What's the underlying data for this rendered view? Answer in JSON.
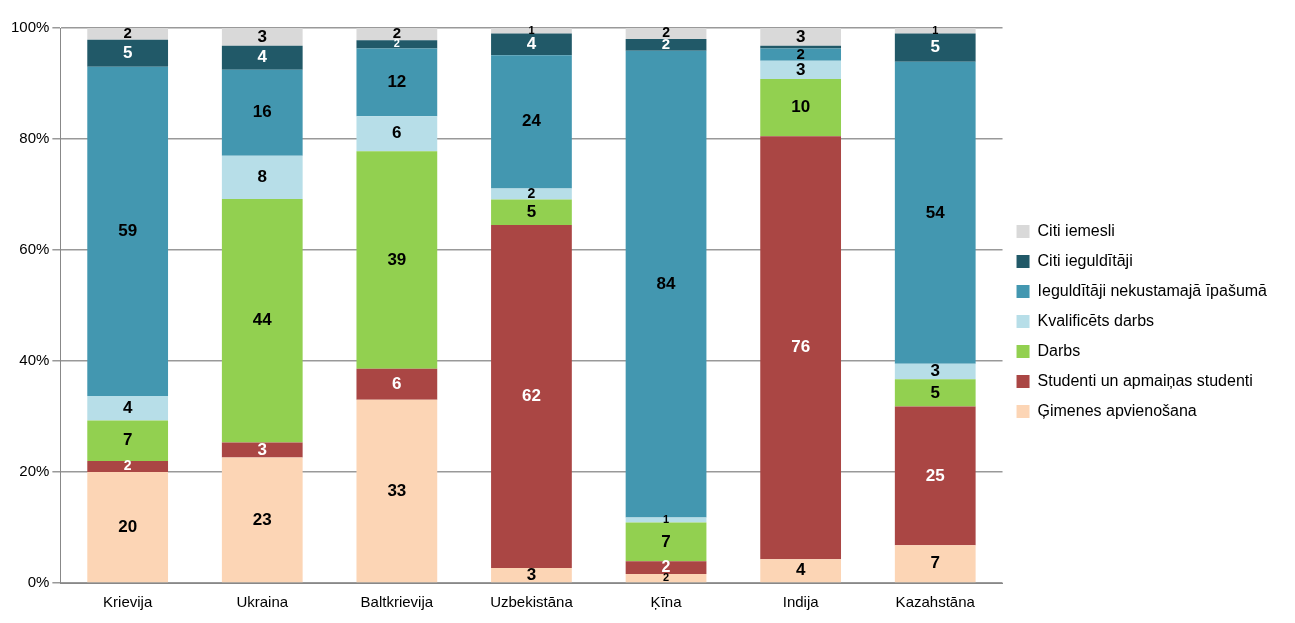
{
  "chart_data": {
    "type": "bar",
    "stacked": true,
    "categories": [
      "Krievija",
      "Ukraina",
      "Baltkrievija",
      "Uzbekistāna",
      "Ķīna",
      "Indija",
      "Kazahstāna"
    ],
    "series": [
      {
        "name": "Ģimenes apvienošana",
        "color": "#fcd5b5",
        "values": [
          20,
          22.6,
          33,
          2.7,
          1.6,
          4.3,
          6.8
        ],
        "value_labels": [
          "20",
          "23",
          "33",
          "3",
          "2",
          "4",
          "7"
        ]
      },
      {
        "name": "Studenti un apmaiņas studenti",
        "color": "#aa4644",
        "values": [
          2,
          2.7,
          5.6,
          61.8,
          2.3,
          76.2,
          25
        ],
        "value_labels": [
          "2",
          "3",
          "6",
          "62",
          "2",
          "76",
          "25"
        ]
      },
      {
        "name": "Darbs",
        "color": "#92d050",
        "values": [
          7.3,
          43.9,
          39.2,
          4.6,
          7,
          10.3,
          4.9
        ],
        "value_labels": [
          "7",
          "44",
          "39",
          "5",
          "7",
          "10",
          "5"
        ]
      },
      {
        "name": "Kvalificēts darbs",
        "color": "#b7dee8",
        "values": [
          4.4,
          7.8,
          6.3,
          2,
          0.9,
          3.3,
          2.8
        ],
        "value_labels": [
          "4",
          "8",
          "6",
          "2",
          "1",
          "3",
          "3"
        ]
      },
      {
        "name": "Ieguldītāji nekustamajā īpašumā",
        "color": "#4397b0",
        "values": [
          59.3,
          15.5,
          12.2,
          24,
          84.1,
          2.2,
          54.4
        ],
        "value_labels": [
          "59",
          "16",
          "12",
          "24",
          "84",
          "2",
          "54"
        ]
      },
      {
        "name": "Citi ieguldītāji",
        "color": "#215968",
        "values": [
          4.9,
          4.3,
          1.5,
          3.9,
          2.1,
          0.5,
          5.1
        ],
        "value_labels": [
          "5",
          "4",
          "2",
          "4",
          "2",
          null,
          "5"
        ]
      },
      {
        "name": "Citi iemesli",
        "color": "#d9d9d9",
        "values": [
          2.1,
          3.2,
          2.2,
          1,
          2,
          3.2,
          1
        ],
        "value_labels": [
          "2",
          "3",
          "2",
          "1",
          "2",
          "3",
          "1"
        ]
      }
    ],
    "ylim": [
      0,
      100
    ],
    "yticks": [
      {
        "value": 0,
        "label": "0%"
      },
      {
        "value": 20,
        "label": "20%"
      },
      {
        "value": 40,
        "label": "40%"
      },
      {
        "value": 60,
        "label": "60%"
      },
      {
        "value": 80,
        "label": "80%"
      },
      {
        "value": 100,
        "label": "100%"
      }
    ],
    "grid": "y",
    "legend": "right"
  }
}
